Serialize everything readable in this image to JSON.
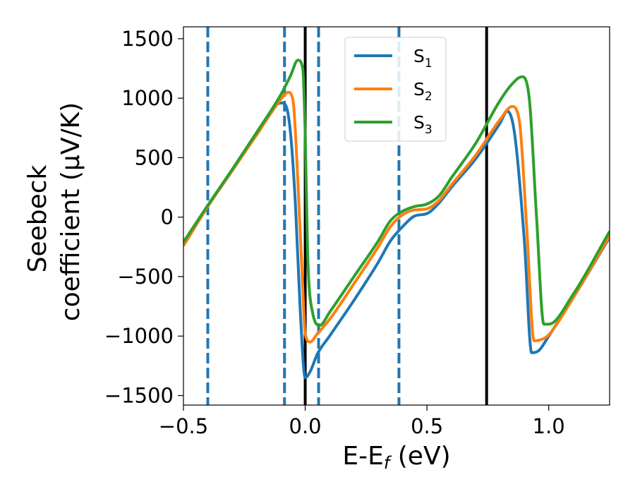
{
  "chart_data": {
    "type": "line",
    "title": "",
    "xlabel": "E-E",
    "xlabel_subscript": "f",
    "xlabel_unit": "(eV)",
    "ylabel_line1": "Seebeck",
    "ylabel_line2": "coefficient  (μV/K)",
    "xlim": [
      -0.5,
      1.25
    ],
    "ylim": [
      -1580,
      1600
    ],
    "xticks": [
      -0.5,
      0.0,
      0.5,
      1.0
    ],
    "xtick_labels": [
      "−0.5",
      "0.0",
      "0.5",
      "1.0"
    ],
    "yticks": [
      -1500,
      -1000,
      -500,
      0,
      500,
      1000,
      1500
    ],
    "ytick_labels": [
      "−1500",
      "−1000",
      "−500",
      "0",
      "500",
      "1000",
      "1500"
    ],
    "legend_position": "top-center",
    "grid": false,
    "series": [
      {
        "name": "S",
        "subscript": "1",
        "color": "#1f77b4",
        "x": [
          -0.5,
          -0.4,
          -0.3,
          -0.2,
          -0.1,
          -0.08,
          -0.06,
          -0.04,
          -0.02,
          0.0,
          0.02,
          0.05,
          0.1,
          0.2,
          0.3,
          0.35,
          0.4,
          0.45,
          0.5,
          0.55,
          0.6,
          0.7,
          0.8,
          0.83,
          0.86,
          0.9,
          0.93,
          0.96,
          1.0,
          1.1,
          1.25
        ],
        "y": [
          -240,
          90,
          390,
          690,
          960,
          940,
          700,
          100,
          -800,
          -1350,
          -1300,
          -1150,
          -1000,
          -700,
          -380,
          -200,
          -80,
          10,
          30,
          120,
          250,
          490,
          790,
          890,
          700,
          -200,
          -1140,
          -1120,
          -1000,
          -680,
          -170
        ]
      },
      {
        "name": "S",
        "subscript": "2",
        "color": "#ff7f0e",
        "x": [
          -0.5,
          -0.4,
          -0.3,
          -0.2,
          -0.1,
          -0.07,
          -0.05,
          -0.03,
          -0.01,
          0.0,
          0.02,
          0.05,
          0.1,
          0.2,
          0.3,
          0.35,
          0.4,
          0.45,
          0.5,
          0.55,
          0.6,
          0.7,
          0.8,
          0.85,
          0.88,
          0.91,
          0.94,
          0.98,
          1.0,
          1.1,
          1.25
        ],
        "y": [
          -240,
          90,
          390,
          690,
          990,
          1050,
          980,
          300,
          -600,
          -980,
          -1050,
          -980,
          -860,
          -560,
          -250,
          -80,
          20,
          60,
          70,
          140,
          270,
          520,
          820,
          930,
          800,
          -100,
          -1040,
          -1020,
          -990,
          -680,
          -160
        ]
      },
      {
        "name": "S",
        "subscript": "3",
        "color": "#2ca02c",
        "x": [
          -0.5,
          -0.4,
          -0.3,
          -0.2,
          -0.1,
          -0.06,
          -0.03,
          -0.01,
          0.0,
          0.01,
          0.03,
          0.06,
          0.1,
          0.2,
          0.3,
          0.35,
          0.4,
          0.45,
          0.5,
          0.55,
          0.6,
          0.7,
          0.8,
          0.85,
          0.89,
          0.92,
          0.95,
          0.98,
          1.0,
          1.1,
          1.25
        ],
        "y": [
          -210,
          100,
          400,
          710,
          1030,
          1190,
          1320,
          1250,
          700,
          -300,
          -800,
          -910,
          -800,
          -500,
          -200,
          -30,
          50,
          90,
          110,
          180,
          330,
          620,
          980,
          1120,
          1180,
          1000,
          0,
          -900,
          -900,
          -650,
          -120
        ]
      }
    ],
    "vertical_lines": [
      {
        "x": -0.4,
        "style": "dashed",
        "color": "#1f77b4"
      },
      {
        "x": -0.085,
        "style": "dashed",
        "color": "#1f77b4"
      },
      {
        "x": 0.055,
        "style": "dashed",
        "color": "#1f77b4"
      },
      {
        "x": 0.385,
        "style": "dashed",
        "color": "#1f77b4"
      },
      {
        "x": 0.0,
        "style": "solid",
        "color": "#000000"
      },
      {
        "x": 0.745,
        "style": "solid",
        "color": "#000000"
      }
    ]
  }
}
